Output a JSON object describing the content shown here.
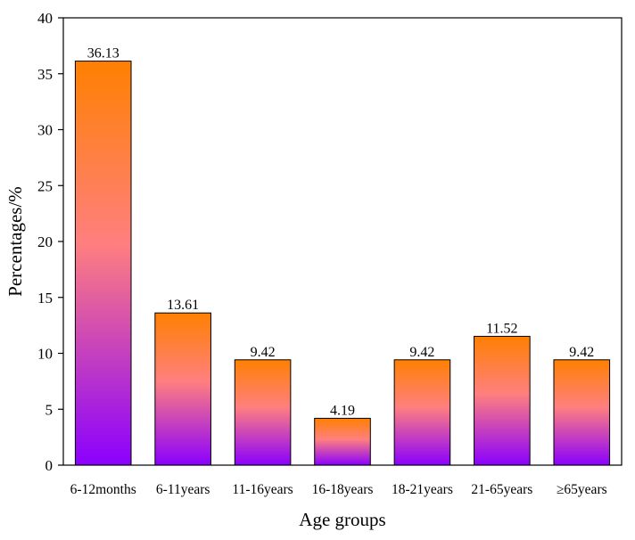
{
  "chart_data": {
    "type": "bar",
    "title": "",
    "xlabel": "Age groups",
    "ylabel": "Percentages/%",
    "categories": [
      "6-12months",
      "6-11years",
      "11-16years",
      "16-18years",
      "18-21years",
      "21-65years",
      "≥65years"
    ],
    "values": [
      36.13,
      13.61,
      9.42,
      4.19,
      9.42,
      11.52,
      9.42
    ],
    "data_labels": [
      "36.13",
      "13.61",
      "9.42",
      "4.19",
      "9.42",
      "11.52",
      "9.42"
    ],
    "ylim": [
      0,
      40
    ],
    "yticks": [
      0,
      5,
      10,
      15,
      20,
      25,
      30,
      35,
      40
    ],
    "grid": false,
    "legend": "none",
    "colors": {
      "bar_top": "#ff8000",
      "bar_mid": "#ff7f7f",
      "bar_bottom": "#8a00ff",
      "axis": "#000000"
    }
  }
}
